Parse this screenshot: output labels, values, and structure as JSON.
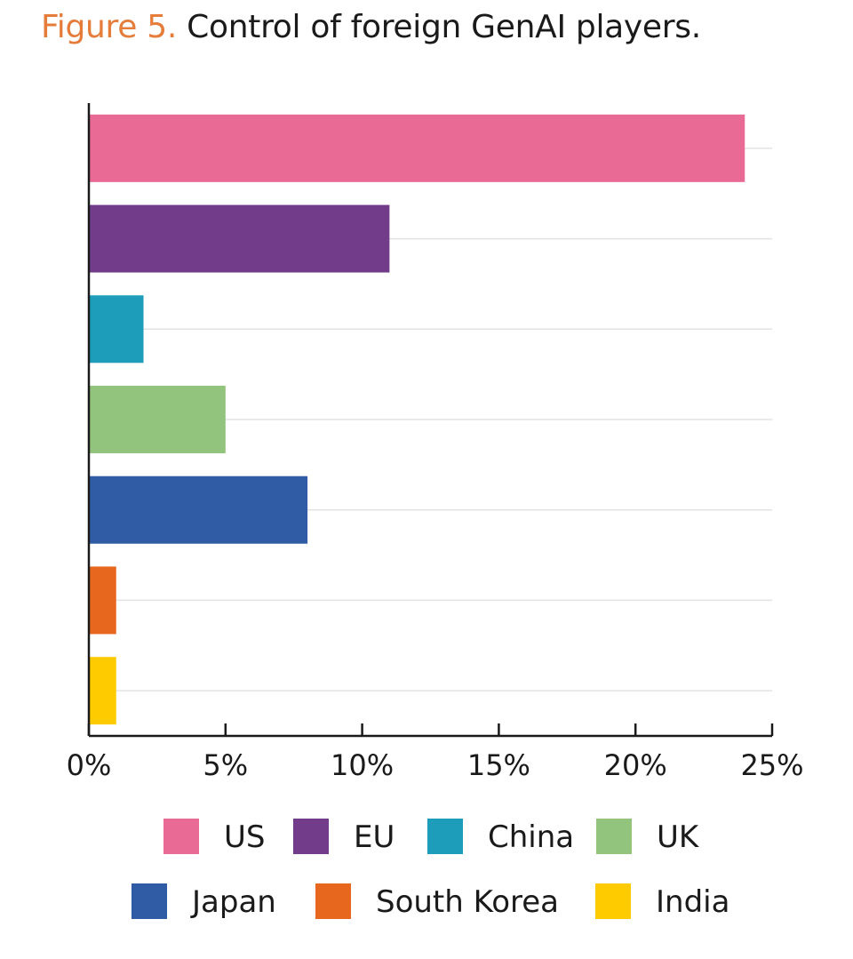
{
  "figure": {
    "label": "Figure 5.",
    "title": "Control of foreign GenAI players."
  },
  "chart_data": {
    "type": "bar",
    "orientation": "horizontal",
    "categories": [
      "US",
      "EU",
      "China",
      "UK",
      "Japan",
      "South Korea",
      "India"
    ],
    "values": [
      24,
      11,
      2,
      5,
      8,
      1,
      1
    ],
    "colors": [
      "#e86a95",
      "#723c8a",
      "#1d9dba",
      "#93c47d",
      "#2f5ca5",
      "#e8671e",
      "#fecb00"
    ],
    "xlim": [
      0,
      25
    ],
    "x_ticks": [
      0,
      5,
      10,
      15,
      20,
      25
    ],
    "x_tick_labels": [
      "0%",
      "5%",
      "10%",
      "15%",
      "20%",
      "25%"
    ],
    "grid": true,
    "legend_position": "bottom"
  }
}
